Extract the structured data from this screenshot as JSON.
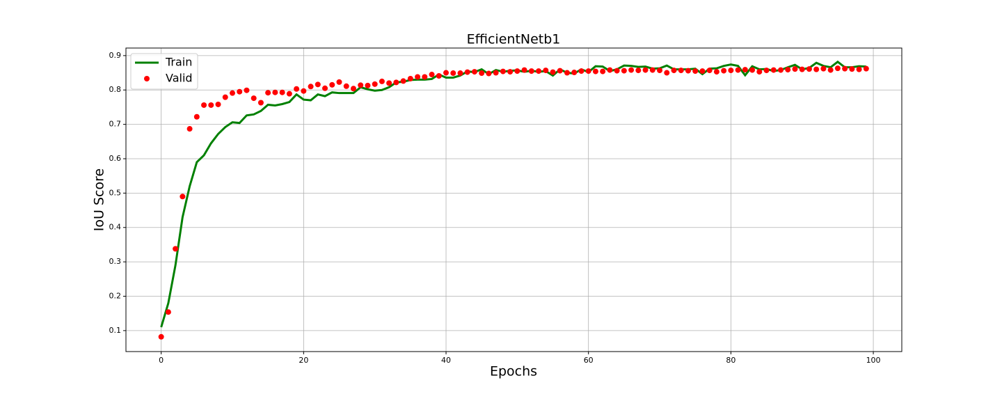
{
  "chart_data": {
    "type": "line",
    "title": "EfficientNetb1",
    "x_label": "Epochs",
    "y_label": "IoU Score",
    "x": [
      0,
      1,
      2,
      3,
      4,
      5,
      6,
      7,
      8,
      9,
      10,
      11,
      12,
      13,
      14,
      15,
      16,
      17,
      18,
      19,
      20,
      21,
      22,
      23,
      24,
      25,
      26,
      27,
      28,
      29,
      30,
      31,
      32,
      33,
      34,
      35,
      36,
      37,
      38,
      39,
      40,
      41,
      42,
      43,
      44,
      45,
      46,
      47,
      48,
      49,
      50,
      51,
      52,
      53,
      54,
      55,
      56,
      57,
      58,
      59,
      60,
      61,
      62,
      63,
      64,
      65,
      66,
      67,
      68,
      69,
      70,
      71,
      72,
      73,
      74,
      75,
      76,
      77,
      78,
      79,
      80,
      81,
      82,
      83,
      84,
      85,
      86,
      87,
      88,
      89,
      90,
      91,
      92,
      93,
      94,
      95,
      96,
      97,
      98,
      99
    ],
    "series": [
      {
        "name": "Train",
        "color": "#008000",
        "mode": "line",
        "values": [
          0.11,
          0.18,
          0.29,
          0.43,
          0.52,
          0.59,
          0.61,
          0.645,
          0.672,
          0.692,
          0.706,
          0.704,
          0.726,
          0.729,
          0.739,
          0.757,
          0.755,
          0.759,
          0.765,
          0.787,
          0.772,
          0.77,
          0.787,
          0.782,
          0.793,
          0.791,
          0.791,
          0.791,
          0.808,
          0.802,
          0.798,
          0.8,
          0.808,
          0.822,
          0.824,
          0.829,
          0.83,
          0.83,
          0.832,
          0.845,
          0.836,
          0.836,
          0.842,
          0.854,
          0.852,
          0.86,
          0.846,
          0.858,
          0.853,
          0.856,
          0.857,
          0.853,
          0.856,
          0.853,
          0.855,
          0.842,
          0.86,
          0.85,
          0.848,
          0.86,
          0.852,
          0.869,
          0.868,
          0.855,
          0.86,
          0.871,
          0.87,
          0.867,
          0.868,
          0.862,
          0.863,
          0.871,
          0.86,
          0.86,
          0.86,
          0.862,
          0.846,
          0.862,
          0.863,
          0.87,
          0.874,
          0.87,
          0.843,
          0.869,
          0.86,
          0.861,
          0.855,
          0.858,
          0.866,
          0.873,
          0.86,
          0.864,
          0.879,
          0.87,
          0.866,
          0.882,
          0.866,
          0.866,
          0.869,
          0.868
        ]
      },
      {
        "name": "Valid",
        "color": "#ff0000",
        "mode": "markers",
        "values": [
          0.082,
          0.154,
          0.338,
          0.49,
          0.687,
          0.722,
          0.756,
          0.756,
          0.758,
          0.779,
          0.791,
          0.795,
          0.799,
          0.776,
          0.763,
          0.792,
          0.793,
          0.793,
          0.789,
          0.803,
          0.797,
          0.81,
          0.816,
          0.805,
          0.815,
          0.823,
          0.811,
          0.804,
          0.814,
          0.813,
          0.817,
          0.825,
          0.82,
          0.822,
          0.826,
          0.833,
          0.838,
          0.838,
          0.845,
          0.841,
          0.85,
          0.849,
          0.849,
          0.852,
          0.853,
          0.849,
          0.848,
          0.85,
          0.854,
          0.853,
          0.855,
          0.858,
          0.855,
          0.855,
          0.857,
          0.852,
          0.856,
          0.85,
          0.851,
          0.855,
          0.855,
          0.854,
          0.854,
          0.858,
          0.856,
          0.856,
          0.858,
          0.857,
          0.858,
          0.858,
          0.857,
          0.85,
          0.857,
          0.857,
          0.856,
          0.855,
          0.855,
          0.857,
          0.853,
          0.856,
          0.857,
          0.858,
          0.859,
          0.858,
          0.853,
          0.857,
          0.858,
          0.858,
          0.859,
          0.861,
          0.86,
          0.861,
          0.86,
          0.862,
          0.858,
          0.863,
          0.862,
          0.861,
          0.86,
          0.862
        ]
      }
    ],
    "xlim": [
      -4.95,
      104.0
    ],
    "ylim": [
      0.039,
      0.922
    ],
    "xticks": [
      0,
      20,
      40,
      60,
      80,
      100
    ],
    "yticks": [
      0.1,
      0.2,
      0.3,
      0.4,
      0.5,
      0.6,
      0.7,
      0.8,
      0.9
    ],
    "grid": true,
    "legend": "upper-left"
  }
}
